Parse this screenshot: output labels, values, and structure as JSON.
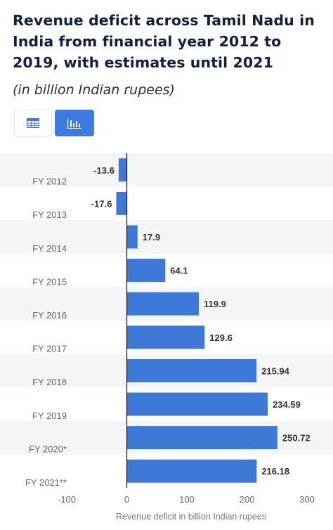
{
  "header": {
    "title": "Revenue deficit across Tamil Nadu in India from financial year 2012 to 2019, with estimates until 2021",
    "subtitle": "(in billion Indian rupees)"
  },
  "view_toggle": {
    "table_icon": "table-icon",
    "bar_chart_icon": "bar-chart-icon",
    "active": "bar-chart"
  },
  "colors": {
    "bar": "#3f79d8",
    "band": "#f4f5f7",
    "title": "#0f2140",
    "axis_text": "#666666",
    "label_text": "#333333"
  },
  "chart_data": {
    "type": "bar",
    "orientation": "horizontal",
    "categories": [
      "FY 2012",
      "FY 2013",
      "FY 2014",
      "FY 2015",
      "FY 2016",
      "FY 2017",
      "FY 2018",
      "FY 2019",
      "FY 2020*",
      "FY 2021**"
    ],
    "values": [
      -13.6,
      -17.6,
      17.9,
      64.1,
      119.9,
      129.6,
      215.94,
      234.59,
      250.72,
      216.18
    ],
    "data_labels": [
      "-13.6",
      "-17.6",
      "17.9",
      "64.1",
      "119.9",
      "129.6",
      "215.94",
      "234.59",
      "250.72",
      "216.18"
    ],
    "xlabel": "Revenue deficit in billion Indian rupees",
    "ylabel": "",
    "xlim": [
      -100,
      300
    ],
    "xticks": [
      -100,
      0,
      100,
      200,
      300
    ],
    "grid": false,
    "alternating_bands": true
  }
}
